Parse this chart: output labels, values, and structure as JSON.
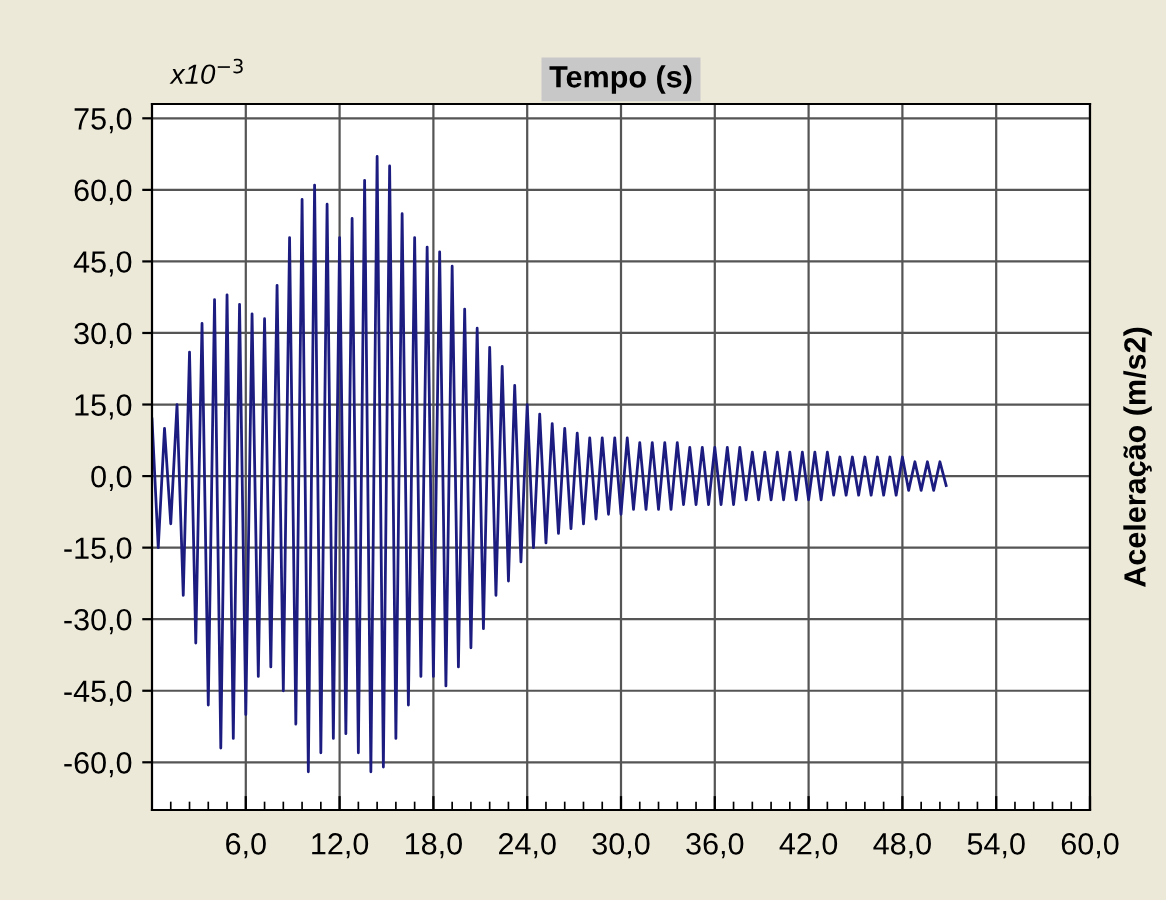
{
  "chart_data": {
    "type": "line",
    "xlabel": "Tempo (s)",
    "ylabel": "Aceleração (m/s2)",
    "annotations": [
      "x10$^{−3}$"
    ],
    "xlim": [
      0,
      60
    ],
    "ylim": [
      -70,
      78
    ],
    "xticks": [
      {
        "value": 1.2,
        "label": null
      },
      {
        "value": 2.4,
        "label": null
      },
      {
        "value": 3.6,
        "label": null
      },
      {
        "value": 4.8,
        "label": null
      },
      {
        "value": 6,
        "label": "6,0"
      },
      {
        "value": 7.2,
        "label": null
      },
      {
        "value": 8.4,
        "label": null
      },
      {
        "value": 9.6,
        "label": null
      },
      {
        "value": 10.8,
        "label": null
      },
      {
        "value": 12,
        "label": "12,0"
      },
      {
        "value": 13.2,
        "label": null
      },
      {
        "value": 14.4,
        "label": null
      },
      {
        "value": 15.6,
        "label": null
      },
      {
        "value": 16.8,
        "label": null
      },
      {
        "value": 18,
        "label": "18,0"
      },
      {
        "value": 19.2,
        "label": null
      },
      {
        "value": 20.4,
        "label": null
      },
      {
        "value": 21.6,
        "label": null
      },
      {
        "value": 22.8,
        "label": null
      },
      {
        "value": 24,
        "label": "24,0"
      },
      {
        "value": 25.2,
        "label": null
      },
      {
        "value": 26.4,
        "label": null
      },
      {
        "value": 27.6,
        "label": null
      },
      {
        "value": 28.8,
        "label": null
      },
      {
        "value": 30,
        "label": "30,0"
      },
      {
        "value": 31.2,
        "label": null
      },
      {
        "value": 32.4,
        "label": null
      },
      {
        "value": 33.6,
        "label": null
      },
      {
        "value": 34.8,
        "label": null
      },
      {
        "value": 36,
        "label": "36,0"
      },
      {
        "value": 37.2,
        "label": null
      },
      {
        "value": 38.4,
        "label": null
      },
      {
        "value": 39.6,
        "label": null
      },
      {
        "value": 40.8,
        "label": null
      },
      {
        "value": 42,
        "label": "42,0"
      },
      {
        "value": 43.2,
        "label": null
      },
      {
        "value": 44.4,
        "label": null
      },
      {
        "value": 45.6,
        "label": null
      },
      {
        "value": 46.8,
        "label": null
      },
      {
        "value": 48,
        "label": "48,0"
      },
      {
        "value": 49.2,
        "label": null
      },
      {
        "value": 50.4,
        "label": null
      },
      {
        "value": 51.6,
        "label": null
      },
      {
        "value": 52.8,
        "label": null
      },
      {
        "value": 54,
        "label": "54,0"
      },
      {
        "value": 55.2,
        "label": null
      },
      {
        "value": 56.4,
        "label": null
      },
      {
        "value": 57.6,
        "label": null
      },
      {
        "value": 58.8,
        "label": null
      },
      {
        "value": 60,
        "label": "60,0"
      }
    ],
    "yticks": [
      {
        "value": -60,
        "label": "-60,0"
      },
      {
        "value": -45,
        "label": "-45,0"
      },
      {
        "value": -30,
        "label": "-30,0"
      },
      {
        "value": -15,
        "label": "-15,0"
      },
      {
        "value": 0,
        "label": "0,0"
      },
      {
        "value": 15,
        "label": "15,0"
      },
      {
        "value": 30,
        "label": "30,0"
      },
      {
        "value": 45,
        "label": "45,0"
      },
      {
        "value": 60,
        "label": "60,0"
      },
      {
        "value": 75,
        "label": "75,0"
      }
    ],
    "grid": true,
    "marker": "none",
    "line_style": "solid",
    "series": [
      {
        "color": "#1c1c80",
        "x": [
          0,
          0.4,
          0.8,
          1.2,
          1.6,
          2.0,
          2.4,
          2.8,
          3.2,
          3.6,
          4.0,
          4.4,
          4.8,
          5.2,
          5.6,
          6.0,
          6.4,
          6.8,
          7.2,
          7.6,
          8.0,
          8.4,
          8.8,
          9.2,
          9.6,
          10.0,
          10.4,
          10.8,
          11.2,
          11.6,
          12.0,
          12.4,
          12.8,
          13.2,
          13.6,
          14.0,
          14.4,
          14.8,
          15.2,
          15.6,
          16.0,
          16.4,
          16.8,
          17.2,
          17.6,
          18.0,
          18.4,
          18.8,
          19.2,
          19.6,
          20.0,
          20.4,
          20.8,
          21.2,
          21.6,
          22.0,
          22.4,
          22.8,
          23.2,
          23.6,
          24.0,
          24.4,
          24.8,
          25.2,
          25.6,
          26.0,
          26.4,
          26.8,
          27.2,
          27.6,
          28.0,
          28.4,
          28.8,
          29.2,
          29.6,
          30.0,
          30.4,
          30.8,
          31.2,
          31.6,
          32.0,
          32.4,
          32.8,
          33.2,
          33.6,
          34.0,
          34.4,
          34.8,
          35.2,
          35.6,
          36.0,
          36.4,
          36.8,
          37.2,
          37.6,
          38.0,
          38.4,
          38.8,
          39.2,
          39.6,
          40.0,
          40.4,
          40.8,
          41.2,
          41.6,
          42.0,
          42.4,
          42.8,
          43.2,
          43.6,
          44.0,
          44.4,
          44.8,
          45.2,
          45.6,
          46.0,
          46.4,
          46.8,
          47.2,
          47.6,
          48.0,
          48.4,
          48.8,
          49.2,
          49.6,
          50.0,
          50.4,
          50.8
        ],
        "values": [
          12,
          -15,
          10,
          -10,
          15,
          -25,
          26,
          -35,
          32,
          -48,
          37,
          -57,
          38,
          -55,
          36,
          -50,
          34,
          -42,
          33,
          -40,
          40,
          -45,
          50,
          -52,
          58,
          -62,
          61,
          -58,
          57,
          -55,
          50,
          -54,
          54,
          -58,
          62,
          -62,
          67,
          -61,
          65,
          -55,
          55,
          -48,
          50,
          -42,
          48,
          -42,
          47,
          -44,
          44,
          -40,
          35,
          -36,
          31,
          -32,
          27,
          -25,
          23,
          -22,
          19,
          -18,
          15,
          -15,
          13,
          -14,
          11,
          -12,
          10,
          -11,
          9,
          -10,
          8,
          -9,
          8,
          -8,
          8,
          -8,
          8,
          -7,
          7,
          -7,
          7,
          -7,
          7,
          -7,
          7,
          -6,
          6,
          -6,
          6,
          -6,
          6,
          -6,
          6,
          -6,
          6,
          -5,
          5,
          -5,
          5,
          -5,
          5,
          -5,
          5,
          -5,
          5,
          -5,
          5,
          -5,
          5,
          -4,
          4,
          -4,
          4,
          -4,
          4,
          -4,
          4,
          -4,
          4,
          -4,
          4,
          -3,
          3,
          -3,
          3,
          -3,
          3,
          -2
        ]
      }
    ]
  }
}
